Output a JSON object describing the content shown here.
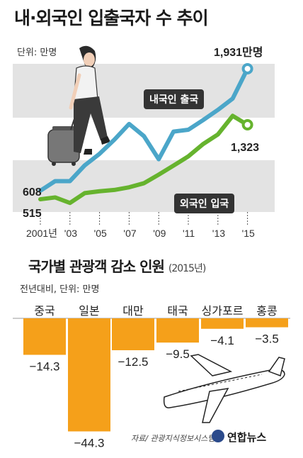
{
  "title": "내·외국인 입출국자 수 추이",
  "line_chart": {
    "unit": "단위: 만명",
    "domestic_label": "내국인 출국",
    "foreign_label": "외국인 입국",
    "start_domestic_label": "608",
    "start_foreign_label": "515",
    "end_domestic_label": "1,931만명",
    "end_foreign_label": "1,323"
  },
  "bar_chart": {
    "title": "국가별 관광객 감소 인원",
    "year": "(2015년)",
    "unit": "전년대비, 단위: 만명"
  },
  "footer": {
    "source": "자료/ 관광지식정보시스템",
    "brand": "연합뉴스"
  },
  "colors": {
    "domestic": "#4ba6c9",
    "foreign": "#66b32e",
    "bar": "#f5a01a",
    "band": "#e3e3e3"
  },
  "icons": [
    "traveler-illustration",
    "airplane-illustration",
    "yonhap-logo-icon"
  ],
  "chart_data": [
    {
      "type": "line",
      "title": "내·외국인 입출국자 수 추이",
      "x": [
        2001,
        2002,
        2003,
        2004,
        2005,
        2006,
        2007,
        2008,
        2009,
        2010,
        2011,
        2012,
        2013,
        2014,
        2015
      ],
      "xticks": [
        "2001년",
        "'03",
        "'05",
        "'07",
        "'09",
        "'11",
        "'13",
        "'15"
      ],
      "series": [
        {
          "name": "내국인 출국",
          "values": [
            608,
            712,
            712,
            883,
            1008,
            1161,
            1332,
            1200,
            949,
            1249,
            1269,
            1374,
            1485,
            1608,
            1931
          ]
        },
        {
          "name": "외국인 입국",
          "values": [
            515,
            535,
            475,
            582,
            602,
            616,
            645,
            689,
            782,
            880,
            980,
            1114,
            1218,
            1420,
            1323
          ]
        }
      ],
      "ylabel": "단위: 만명",
      "grid": false
    },
    {
      "type": "bar",
      "title": "국가별 관광객 감소 인원 (2015년)",
      "categories": [
        "중국",
        "일본",
        "대만",
        "태국",
        "싱가포르",
        "홍콩"
      ],
      "values": [
        -14.3,
        -44.3,
        -12.5,
        -9.5,
        -4.1,
        -3.5
      ],
      "value_labels": [
        "−14.3",
        "−44.3",
        "−12.5",
        "−9.5",
        "−4.1",
        "−3.5"
      ],
      "ylabel": "전년대비, 단위: 만명"
    }
  ]
}
